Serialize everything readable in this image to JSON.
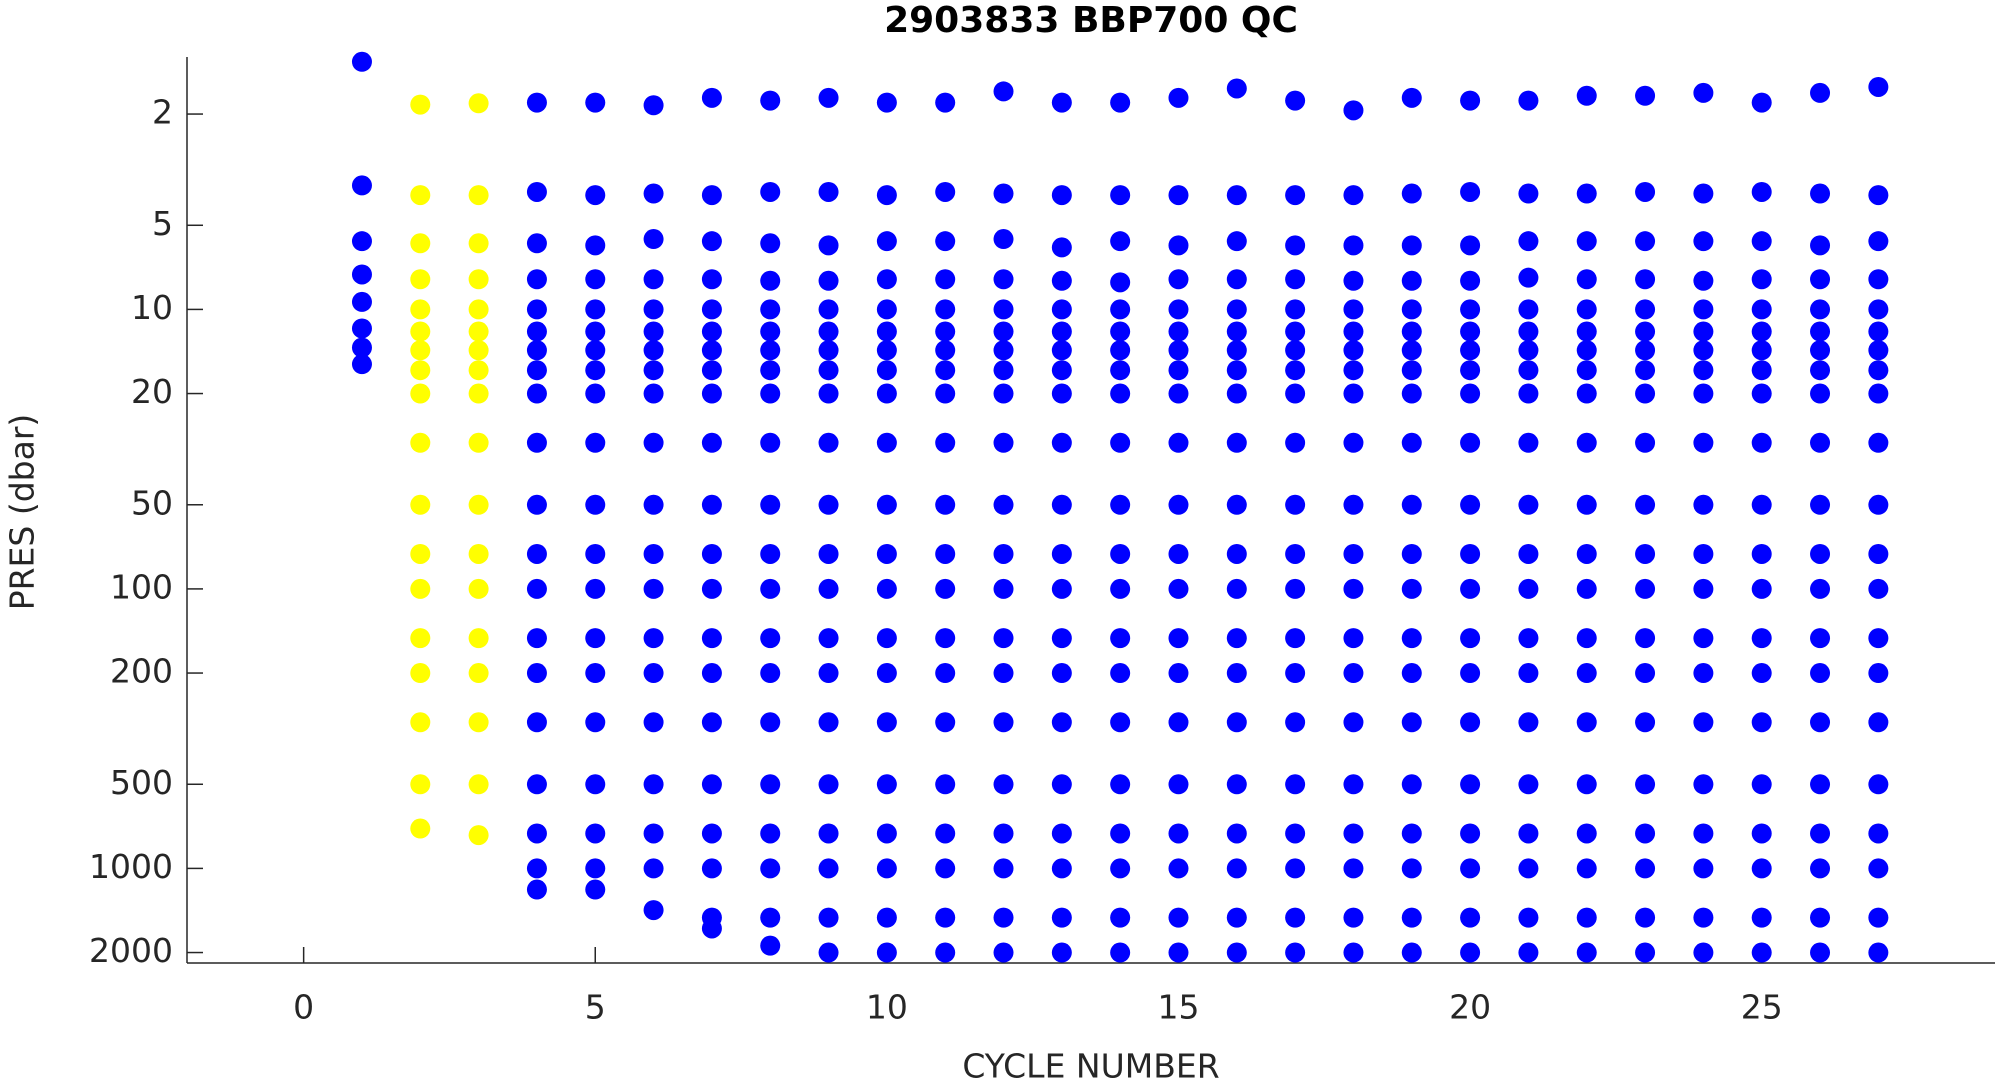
{
  "chart_data": {
    "type": "scatter",
    "title": "2903833 BBP700 QC",
    "x_label": "CYCLE NUMBER",
    "y_label": "PRES (dbar)",
    "xlim": [
      -2,
      29
    ],
    "xticks": [
      0,
      5,
      10,
      15,
      20,
      25
    ],
    "ylim": [
      1.25,
      2180
    ],
    "yticks": [
      2,
      5,
      10,
      20,
      50,
      100,
      200,
      500,
      1000,
      2000
    ],
    "y_scale": "log",
    "y_reversed": true,
    "grid": false,
    "columns": [
      {
        "x": 1,
        "color": "#0000ff",
        "y": [
          1.3,
          3.6,
          5.7,
          7.5,
          9.4,
          11.7,
          13.7,
          15.7
        ]
      },
      {
        "x": 2,
        "color": "#ffff00",
        "y": [
          1.85,
          3.9,
          5.8,
          7.8,
          10,
          12,
          14,
          16.5,
          20,
          30,
          50,
          75,
          100,
          150,
          200,
          300,
          500,
          720
        ]
      },
      {
        "x": 3,
        "color": "#ffff00",
        "y": [
          1.83,
          3.9,
          5.8,
          7.8,
          10,
          12,
          14,
          16.5,
          20,
          30,
          50,
          75,
          100,
          150,
          200,
          300,
          500,
          760
        ]
      },
      {
        "x": 4,
        "color": "#0000ff",
        "y": [
          1.82,
          3.8,
          5.8,
          7.8,
          10,
          12,
          14,
          16.5,
          20,
          30,
          50,
          75,
          100,
          150,
          200,
          300,
          500,
          750,
          1000,
          1190
        ]
      },
      {
        "x": 5,
        "color": "#0000ff",
        "y": [
          1.82,
          3.9,
          5.9,
          7.8,
          10,
          12,
          14,
          16.5,
          20,
          30,
          50,
          75,
          100,
          150,
          200,
          300,
          500,
          750,
          1000,
          1190
        ]
      },
      {
        "x": 6,
        "color": "#0000ff",
        "y": [
          1.86,
          3.85,
          5.6,
          7.8,
          10,
          12,
          14,
          16.5,
          20,
          30,
          50,
          75,
          100,
          150,
          200,
          300,
          500,
          750,
          1000,
          1410
        ]
      },
      {
        "x": 7,
        "color": "#0000ff",
        "y": [
          1.75,
          3.9,
          5.7,
          7.8,
          10,
          12,
          14,
          16.5,
          20,
          30,
          50,
          75,
          100,
          150,
          200,
          300,
          500,
          750,
          1000,
          1500,
          1640
        ]
      },
      {
        "x": 8,
        "color": "#0000ff",
        "y": [
          1.79,
          3.8,
          5.8,
          7.9,
          10,
          12,
          14,
          16.5,
          20,
          30,
          50,
          75,
          100,
          150,
          200,
          300,
          500,
          750,
          1000,
          1500,
          1890
        ]
      },
      {
        "x": 9,
        "color": "#0000ff",
        "y": [
          1.75,
          3.8,
          5.9,
          7.9,
          10,
          12,
          14,
          16.5,
          20,
          30,
          50,
          75,
          100,
          150,
          200,
          300,
          500,
          750,
          1000,
          1500,
          2000
        ]
      },
      {
        "x": 10,
        "color": "#0000ff",
        "y": [
          1.82,
          3.9,
          5.7,
          7.8,
          10,
          12,
          14,
          16.5,
          20,
          30,
          50,
          75,
          100,
          150,
          200,
          300,
          500,
          750,
          1000,
          1500,
          2000
        ]
      },
      {
        "x": 11,
        "color": "#0000ff",
        "y": [
          1.82,
          3.8,
          5.7,
          7.8,
          10,
          12,
          14,
          16.5,
          20,
          30,
          50,
          75,
          100,
          150,
          200,
          300,
          500,
          750,
          1000,
          1500,
          2000
        ]
      },
      {
        "x": 12,
        "color": "#0000ff",
        "y": [
          1.66,
          3.85,
          5.6,
          7.8,
          10,
          12,
          14,
          16.5,
          20,
          30,
          50,
          75,
          100,
          150,
          200,
          300,
          500,
          750,
          1000,
          1500,
          2000
        ]
      },
      {
        "x": 13,
        "color": "#0000ff",
        "y": [
          1.82,
          3.9,
          6,
          7.9,
          10,
          12,
          14,
          16.5,
          20,
          30,
          50,
          75,
          100,
          150,
          200,
          300,
          500,
          750,
          1000,
          1500,
          2000
        ]
      },
      {
        "x": 14,
        "color": "#0000ff",
        "y": [
          1.82,
          3.9,
          5.7,
          8,
          10,
          12,
          14,
          16.5,
          20,
          30,
          50,
          75,
          100,
          150,
          200,
          300,
          500,
          750,
          1000,
          1500,
          2000
        ]
      },
      {
        "x": 15,
        "color": "#0000ff",
        "y": [
          1.75,
          3.9,
          5.9,
          7.8,
          10,
          12,
          14,
          16.5,
          20,
          30,
          50,
          75,
          100,
          150,
          200,
          300,
          500,
          750,
          1000,
          1500,
          2000
        ]
      },
      {
        "x": 16,
        "color": "#0000ff",
        "y": [
          1.62,
          3.9,
          5.7,
          7.8,
          10,
          12,
          14,
          16.5,
          20,
          30,
          50,
          75,
          100,
          150,
          200,
          300,
          500,
          750,
          1000,
          1500,
          2000
        ]
      },
      {
        "x": 17,
        "color": "#0000ff",
        "y": [
          1.79,
          3.9,
          5.9,
          7.8,
          10,
          12,
          14,
          16.5,
          20,
          30,
          50,
          75,
          100,
          150,
          200,
          300,
          500,
          750,
          1000,
          1500,
          2000
        ]
      },
      {
        "x": 18,
        "color": "#0000ff",
        "y": [
          1.94,
          3.9,
          5.9,
          7.9,
          10,
          12,
          14,
          16.5,
          20,
          30,
          50,
          75,
          100,
          150,
          200,
          300,
          500,
          750,
          1000,
          1500,
          2000
        ]
      },
      {
        "x": 19,
        "color": "#0000ff",
        "y": [
          1.75,
          3.85,
          5.9,
          7.9,
          10,
          12,
          14,
          16.5,
          20,
          30,
          50,
          75,
          100,
          150,
          200,
          300,
          500,
          750,
          1000,
          1500,
          2000
        ]
      },
      {
        "x": 20,
        "color": "#0000ff",
        "y": [
          1.79,
          3.8,
          5.9,
          7.9,
          10,
          12,
          14,
          16.5,
          20,
          30,
          50,
          75,
          100,
          150,
          200,
          300,
          500,
          750,
          1000,
          1500,
          2000
        ]
      },
      {
        "x": 21,
        "color": "#0000ff",
        "y": [
          1.79,
          3.85,
          5.7,
          7.7,
          10,
          12,
          14,
          16.5,
          20,
          30,
          50,
          75,
          100,
          150,
          200,
          300,
          500,
          750,
          1000,
          1500,
          2000
        ]
      },
      {
        "x": 22,
        "color": "#0000ff",
        "y": [
          1.72,
          3.85,
          5.7,
          7.8,
          10,
          12,
          14,
          16.5,
          20,
          30,
          50,
          75,
          100,
          150,
          200,
          300,
          500,
          750,
          1000,
          1500,
          2000
        ]
      },
      {
        "x": 23,
        "color": "#0000ff",
        "y": [
          1.72,
          3.8,
          5.7,
          7.8,
          10,
          12,
          14,
          16.5,
          20,
          30,
          50,
          75,
          100,
          150,
          200,
          300,
          500,
          750,
          1000,
          1500,
          2000
        ]
      },
      {
        "x": 24,
        "color": "#0000ff",
        "y": [
          1.68,
          3.85,
          5.7,
          7.9,
          10,
          12,
          14,
          16.5,
          20,
          30,
          50,
          75,
          100,
          150,
          200,
          300,
          500,
          750,
          1000,
          1500,
          2000
        ]
      },
      {
        "x": 25,
        "color": "#0000ff",
        "y": [
          1.82,
          3.8,
          5.7,
          7.8,
          10,
          12,
          14,
          16.5,
          20,
          30,
          50,
          75,
          100,
          150,
          200,
          300,
          500,
          750,
          1000,
          1500,
          2000
        ]
      },
      {
        "x": 26,
        "color": "#0000ff",
        "y": [
          1.68,
          3.85,
          5.9,
          7.8,
          10,
          12,
          14,
          16.5,
          20,
          30,
          50,
          75,
          100,
          150,
          200,
          300,
          500,
          750,
          1000,
          1500,
          2000
        ]
      },
      {
        "x": 27,
        "color": "#0000ff",
        "y": [
          1.6,
          3.9,
          5.7,
          7.8,
          10,
          12,
          14,
          16.5,
          20,
          30,
          50,
          75,
          100,
          150,
          200,
          300,
          500,
          750,
          1000,
          1500,
          2000
        ]
      }
    ]
  }
}
